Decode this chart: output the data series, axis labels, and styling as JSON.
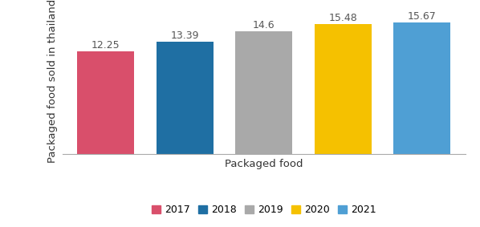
{
  "categories": [
    "2017",
    "2018",
    "2019",
    "2020",
    "2021"
  ],
  "values": [
    12.25,
    13.39,
    14.6,
    15.48,
    15.67
  ],
  "bar_colors": [
    "#d94f6b",
    "#1f6fa3",
    "#a9a9a9",
    "#f5c100",
    "#4f9fd4"
  ],
  "xlabel": "Packaged food",
  "ylabel": "Packaged food sold in thailand",
  "ylim": [
    0,
    17.5
  ],
  "bar_labels": [
    "12.25",
    "13.39",
    "14.6",
    "15.48",
    "15.67"
  ],
  "legend_labels": [
    "2017",
    "2018",
    "2019",
    "2020",
    "2021"
  ],
  "background_color": "#ffffff",
  "label_fontsize": 9,
  "axis_label_fontsize": 9.5
}
